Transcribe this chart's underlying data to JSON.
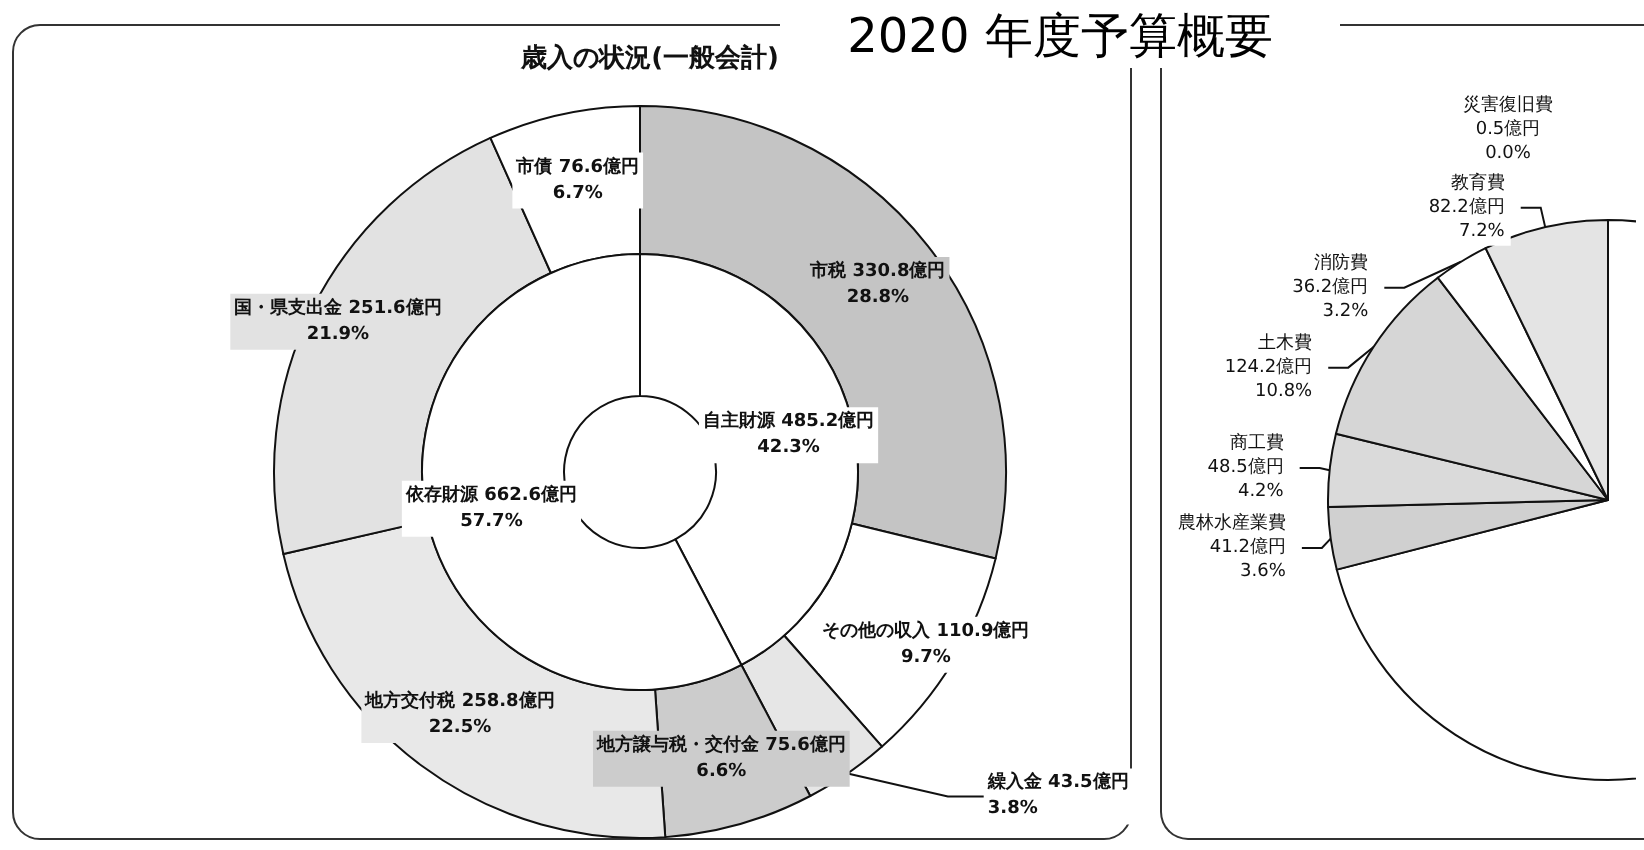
{
  "chart_data": [
    {
      "type": "donut",
      "title": "2020 年度予算概要",
      "subtitle": "歳入の状況(一般会計)",
      "legend": false,
      "categories": [
        "市税",
        "その他の収入",
        "繰入金",
        "地方譲与税・交付金",
        "地方交付税",
        "国・県支出金",
        "市債"
      ],
      "values": [
        28.8,
        9.7,
        3.8,
        6.6,
        22.5,
        21.9,
        6.7
      ],
      "colors": [
        "#c4c4c4",
        "#ffffff",
        "#e6e6e6",
        "#cccccc",
        "#e8e8e8",
        "#e2e2e2",
        "#ffffff"
      ],
      "value_labels": [
        "330.8億円\n28.8%",
        "110.9億円\n9.7%",
        "43.5億円\n3.8%",
        "75.6億円\n6.6%",
        "258.8億円\n22.5%",
        "251.6億円\n21.9%",
        "76.6億円\n6.7%"
      ]
    },
    {
      "type": "donut",
      "legend": false,
      "categories": [
        "自主財源",
        "依存財源"
      ],
      "values": [
        42.3,
        57.7
      ],
      "colors": [
        "#ffffff",
        "#ffffff"
      ],
      "value_labels": [
        "485.2億円\n42.3%",
        "662.6億円\n57.7%"
      ]
    },
    {
      "type": "pie",
      "legend": false,
      "categories": [
        null,
        "農林水産業費",
        "商工費",
        "土木費",
        "消防費",
        "教育費",
        "災害復旧費"
      ],
      "values": [
        71.0,
        3.6,
        4.2,
        10.8,
        3.2,
        7.2,
        0.0
      ],
      "colors": [
        "#ffffff",
        "#d0d0d0",
        "#dadada",
        "#d6d6d6",
        "#ffffff",
        "#e4e4e4",
        "#ffffff"
      ],
      "value_labels": [
        null,
        "41.2億円\n3.6%",
        "48.5億円\n4.2%",
        "124.2億円\n10.8%",
        "36.2億円\n3.2%",
        "82.2億円\n7.2%",
        "0.5億円\n0.0%"
      ]
    }
  ]
}
